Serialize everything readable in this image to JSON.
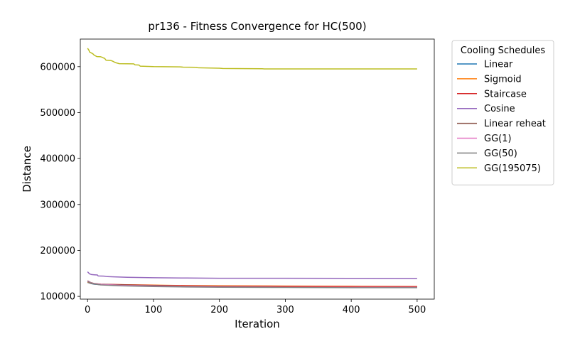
{
  "chart_data": {
    "type": "line",
    "title": "pr136 - Fitness Convergence for HC(500)",
    "xlabel": "Iteration",
    "ylabel": "Distance",
    "xlim": [
      -11,
      526
    ],
    "ylim": [
      94000,
      660000
    ],
    "x_ticks": [
      0,
      100,
      200,
      300,
      400,
      500
    ],
    "x_tick_labels": [
      "0",
      "100",
      "200",
      "300",
      "400",
      "500"
    ],
    "y_ticks": [
      100000,
      200000,
      300000,
      400000,
      500000,
      600000
    ],
    "y_tick_labels": [
      "100000",
      "200000",
      "300000",
      "400000",
      "500000",
      "600000"
    ],
    "grid": false,
    "legend": {
      "title": "Cooling Schedules",
      "placement": "outside-right"
    },
    "series": [
      {
        "name": "Linear",
        "color": "#1f77b4",
        "points": [
          [
            0,
            130500
          ],
          [
            5,
            128000
          ],
          [
            10,
            126500
          ],
          [
            20,
            125500
          ],
          [
            40,
            124500
          ],
          [
            80,
            123000
          ],
          [
            150,
            122000
          ],
          [
            250,
            121000
          ],
          [
            350,
            120500
          ],
          [
            500,
            120000
          ]
        ]
      },
      {
        "name": "Sigmoid",
        "color": "#ff7f0e",
        "points": [
          [
            0,
            131000
          ],
          [
            5,
            128500
          ],
          [
            10,
            127000
          ],
          [
            20,
            126000
          ],
          [
            50,
            125500
          ],
          [
            100,
            124500
          ],
          [
            150,
            123500
          ],
          [
            200,
            123000
          ],
          [
            300,
            122500
          ],
          [
            400,
            122000
          ],
          [
            500,
            121500
          ]
        ]
      },
      {
        "name": "Staircase",
        "color": "#d62728",
        "points": [
          [
            0,
            132000
          ],
          [
            5,
            129000
          ],
          [
            10,
            127500
          ],
          [
            20,
            126500
          ],
          [
            50,
            125500
          ],
          [
            100,
            124000
          ],
          [
            150,
            123000
          ],
          [
            200,
            122000
          ],
          [
            300,
            121500
          ],
          [
            400,
            121000
          ],
          [
            500,
            121000
          ]
        ]
      },
      {
        "name": "Cosine",
        "color": "#9467bd",
        "points": [
          [
            0,
            153500
          ],
          [
            3,
            149000
          ],
          [
            6,
            147500
          ],
          [
            10,
            147000
          ],
          [
            15,
            146500
          ],
          [
            16,
            144500
          ],
          [
            25,
            144000
          ],
          [
            30,
            143000
          ],
          [
            40,
            142500
          ],
          [
            60,
            141500
          ],
          [
            100,
            140500
          ],
          [
            150,
            140000
          ],
          [
            200,
            139500
          ],
          [
            300,
            139500
          ],
          [
            400,
            139200
          ],
          [
            500,
            139000
          ]
        ]
      },
      {
        "name": "Linear reheat",
        "color": "#8c564b",
        "points": [
          [
            0,
            134000
          ],
          [
            5,
            130000
          ],
          [
            10,
            128000
          ],
          [
            20,
            126500
          ],
          [
            50,
            125000
          ],
          [
            100,
            123500
          ],
          [
            150,
            122000
          ],
          [
            200,
            121000
          ],
          [
            300,
            120000
          ],
          [
            400,
            119500
          ],
          [
            500,
            119500
          ]
        ]
      },
      {
        "name": "GG(1)",
        "color": "#e377c2",
        "points": [
          [
            0,
            133000
          ],
          [
            5,
            129500
          ],
          [
            10,
            127500
          ],
          [
            20,
            126000
          ],
          [
            50,
            124000
          ],
          [
            100,
            122500
          ],
          [
            150,
            121500
          ],
          [
            200,
            120500
          ],
          [
            300,
            120000
          ],
          [
            400,
            119800
          ],
          [
            500,
            119500
          ]
        ]
      },
      {
        "name": "GG(50)",
        "color": "#7f7f7f",
        "points": [
          [
            0,
            132000
          ],
          [
            5,
            129000
          ],
          [
            10,
            127000
          ],
          [
            20,
            125000
          ],
          [
            50,
            123000
          ],
          [
            100,
            121500
          ],
          [
            150,
            120500
          ],
          [
            200,
            120000
          ],
          [
            300,
            119500
          ],
          [
            400,
            119000
          ],
          [
            500,
            119000
          ]
        ]
      },
      {
        "name": "GG(195075)",
        "color": "#bcbd22",
        "points": [
          [
            0,
            640000
          ],
          [
            2,
            636000
          ],
          [
            3,
            632000
          ],
          [
            8,
            628000
          ],
          [
            10,
            625000
          ],
          [
            14,
            622000
          ],
          [
            20,
            621500
          ],
          [
            22,
            620500
          ],
          [
            24,
            619000
          ],
          [
            26,
            618000
          ],
          [
            28,
            614000
          ],
          [
            35,
            613500
          ],
          [
            38,
            612000
          ],
          [
            42,
            609000
          ],
          [
            48,
            606500
          ],
          [
            70,
            606000
          ],
          [
            72,
            604000
          ],
          [
            78,
            603500
          ],
          [
            80,
            601000
          ],
          [
            100,
            600000
          ],
          [
            140,
            599500
          ],
          [
            145,
            599000
          ],
          [
            165,
            598500
          ],
          [
            168,
            597500
          ],
          [
            200,
            596500
          ],
          [
            205,
            596000
          ],
          [
            265,
            595500
          ],
          [
            268,
            595000
          ],
          [
            500,
            595000
          ]
        ]
      }
    ]
  }
}
